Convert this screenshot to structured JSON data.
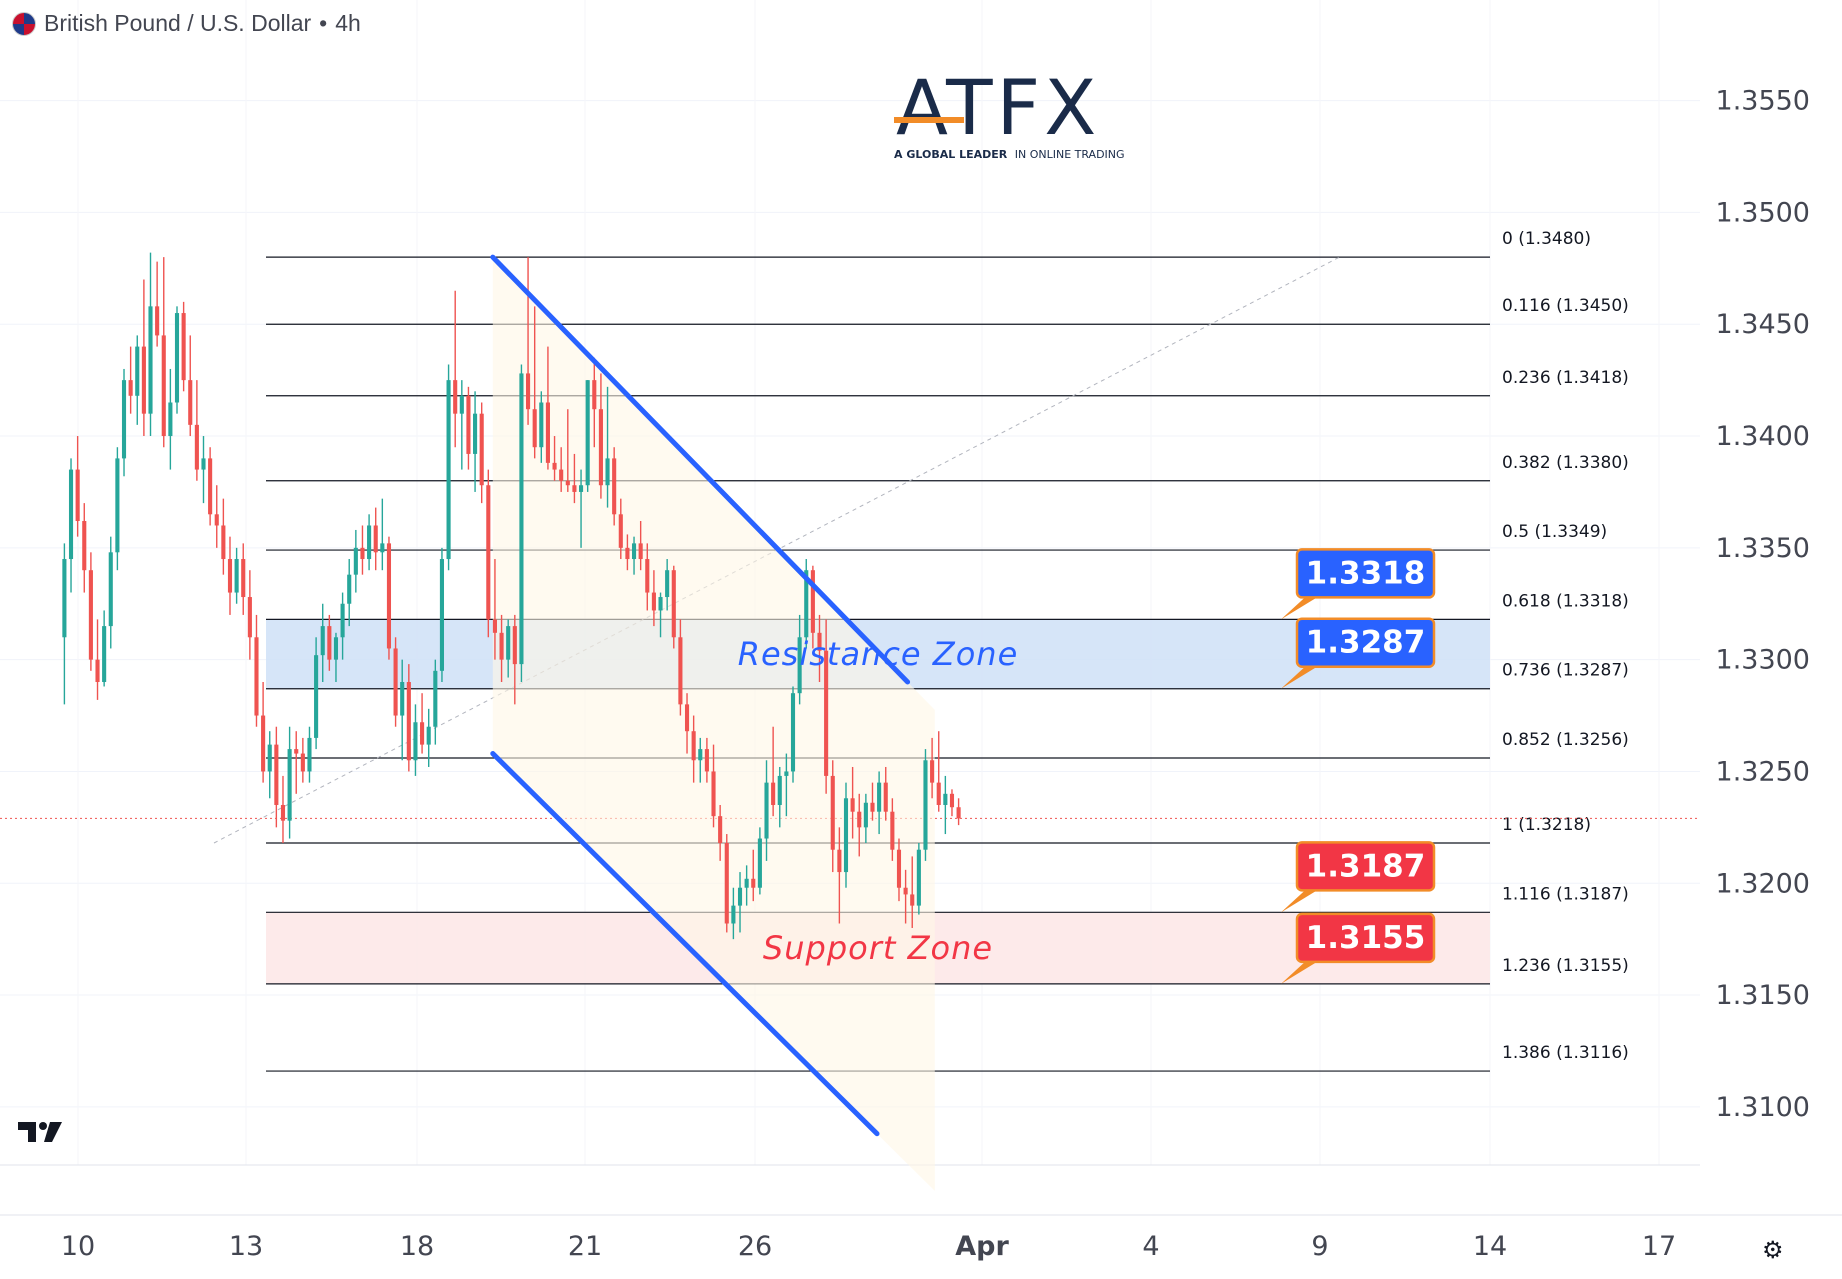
{
  "header": {
    "title": "British Pound / U.S. Dollar",
    "separator": "•",
    "interval": "4h"
  },
  "logo": {
    "name": "ATFX",
    "tagline_bold": "A GLOBAL LEADER",
    "tagline_rest": "IN ONLINE TRADING"
  },
  "colors": {
    "up": "#26a69a",
    "down": "#ef5350",
    "channel": "#2962ff",
    "resistance_fill": "#cfe0f7",
    "support_fill": "#fde6e6",
    "resistance_label": "#2962ff",
    "support_label": "#f23645",
    "fib_line": "#131722",
    "logo_accent": "#f28c28"
  },
  "icons": {
    "tradingview": "tradingview-logo-icon",
    "settings": "settings-icon"
  },
  "chart_data": {
    "type": "candlestick",
    "symbol": "British Pound / U.S. Dollar",
    "interval": "4h",
    "y_axis": {
      "range": [
        1.3074,
        1.3595
      ],
      "ticks": [
        "1.3550",
        "1.3500",
        "1.3450",
        "1.3400",
        "1.3350",
        "1.3300",
        "1.3250",
        "1.3200",
        "1.3150",
        "1.3100"
      ]
    },
    "x_axis": {
      "ticks": [
        "10",
        "13",
        "18",
        "21",
        "26",
        "Apr",
        "4",
        "9",
        "14",
        "17"
      ]
    },
    "grid": true,
    "current_price": 1.3229,
    "fibonacci": [
      {
        "label": "0 (1.3480)",
        "price": 1.348
      },
      {
        "label": "0.116 (1.3450)",
        "price": 1.345
      },
      {
        "label": "0.236 (1.3418)",
        "price": 1.3418
      },
      {
        "label": "0.382 (1.3380)",
        "price": 1.338
      },
      {
        "label": "0.5 (1.3349)",
        "price": 1.3349
      },
      {
        "label": "0.618 (1.3318)",
        "price": 1.3318
      },
      {
        "label": "0.736 (1.3287)",
        "price": 1.3287
      },
      {
        "label": "0.852 (1.3256)",
        "price": 1.3256
      },
      {
        "label": "1 (1.3218)",
        "price": 1.3218
      },
      {
        "label": "1.116 (1.3187)",
        "price": 1.3187
      },
      {
        "label": "1.236 (1.3155)",
        "price": 1.3155
      },
      {
        "label": "1.386 (1.3116)",
        "price": 1.3116
      }
    ],
    "zones": [
      {
        "name": "Resistance Zone",
        "from": 1.3287,
        "to": 1.3318
      },
      {
        "name": "Support Zone",
        "from": 1.3155,
        "to": 1.3187
      }
    ],
    "price_tags": [
      {
        "text": "1.3318",
        "price": 1.3318,
        "kind": "resistance"
      },
      {
        "text": "1.3287",
        "price": 1.3287,
        "kind": "resistance"
      },
      {
        "text": "1.3187",
        "price": 1.3187,
        "kind": "support"
      },
      {
        "text": "1.3155",
        "price": 1.3155,
        "kind": "support"
      }
    ],
    "channel": {
      "upper": [
        [
          22.2,
          1.348
        ],
        [
          34.4,
          1.329
        ]
      ],
      "lower": [
        [
          22.2,
          1.3258
        ],
        [
          33.5,
          1.3088
        ]
      ]
    },
    "candles_ohlc": [
      [
        1.331,
        1.3352,
        1.328,
        1.3345
      ],
      [
        1.3345,
        1.339,
        1.333,
        1.3385
      ],
      [
        1.3385,
        1.34,
        1.3355,
        1.3362
      ],
      [
        1.3362,
        1.337,
        1.333,
        1.334
      ],
      [
        1.334,
        1.3348,
        1.3295,
        1.33
      ],
      [
        1.33,
        1.3318,
        1.3282,
        1.329
      ],
      [
        1.329,
        1.3322,
        1.3288,
        1.3315
      ],
      [
        1.3315,
        1.3355,
        1.3305,
        1.3348
      ],
      [
        1.3348,
        1.3395,
        1.334,
        1.339
      ],
      [
        1.339,
        1.343,
        1.3382,
        1.3425
      ],
      [
        1.3425,
        1.344,
        1.341,
        1.3418
      ],
      [
        1.3418,
        1.3445,
        1.3405,
        1.344
      ],
      [
        1.344,
        1.347,
        1.34,
        1.341
      ],
      [
        1.341,
        1.3482,
        1.34,
        1.3458
      ],
      [
        1.3458,
        1.3478,
        1.344,
        1.3445
      ],
      [
        1.3445,
        1.348,
        1.3395,
        1.34
      ],
      [
        1.34,
        1.343,
        1.3385,
        1.3415
      ],
      [
        1.3415,
        1.3458,
        1.341,
        1.3455
      ],
      [
        1.3455,
        1.346,
        1.342,
        1.3425
      ],
      [
        1.3425,
        1.3445,
        1.34,
        1.3405
      ],
      [
        1.3405,
        1.3425,
        1.338,
        1.3385
      ],
      [
        1.3385,
        1.34,
        1.337,
        1.339
      ],
      [
        1.339,
        1.3395,
        1.336,
        1.3365
      ],
      [
        1.3365,
        1.3378,
        1.335,
        1.336
      ],
      [
        1.336,
        1.3372,
        1.3338,
        1.3345
      ],
      [
        1.3345,
        1.3355,
        1.332,
        1.333
      ],
      [
        1.333,
        1.335,
        1.3325,
        1.3345
      ],
      [
        1.3345,
        1.3352,
        1.332,
        1.3328
      ],
      [
        1.3328,
        1.334,
        1.33,
        1.331
      ],
      [
        1.331,
        1.332,
        1.327,
        1.3275
      ],
      [
        1.3275,
        1.329,
        1.3245,
        1.325
      ],
      [
        1.325,
        1.3268,
        1.3238,
        1.3262
      ],
      [
        1.3262,
        1.327,
        1.3225,
        1.3235
      ],
      [
        1.3235,
        1.3248,
        1.3218,
        1.3228
      ],
      [
        1.3228,
        1.327,
        1.322,
        1.326
      ],
      [
        1.326,
        1.3268,
        1.324,
        1.3258
      ],
      [
        1.3258,
        1.3265,
        1.3245,
        1.325
      ],
      [
        1.325,
        1.327,
        1.3245,
        1.3265
      ],
      [
        1.3265,
        1.331,
        1.326,
        1.3302
      ],
      [
        1.3302,
        1.3325,
        1.329,
        1.3315
      ],
      [
        1.3315,
        1.332,
        1.3295,
        1.33
      ],
      [
        1.33,
        1.3312,
        1.329,
        1.331
      ],
      [
        1.331,
        1.333,
        1.33,
        1.3325
      ],
      [
        1.3325,
        1.3345,
        1.3315,
        1.3338
      ],
      [
        1.3338,
        1.3358,
        1.333,
        1.335
      ],
      [
        1.335,
        1.336,
        1.3338,
        1.3345
      ],
      [
        1.3345,
        1.3365,
        1.334,
        1.336
      ],
      [
        1.336,
        1.3368,
        1.334,
        1.3348
      ],
      [
        1.3348,
        1.3372,
        1.334,
        1.3352
      ],
      [
        1.3352,
        1.3355,
        1.33,
        1.3305
      ],
      [
        1.3305,
        1.331,
        1.327,
        1.3275
      ],
      [
        1.3275,
        1.33,
        1.3255,
        1.329
      ],
      [
        1.329,
        1.3298,
        1.325,
        1.3255
      ],
      [
        1.3255,
        1.328,
        1.3248,
        1.3272
      ],
      [
        1.3272,
        1.3285,
        1.3258,
        1.3262
      ],
      [
        1.3262,
        1.3278,
        1.3252,
        1.327
      ],
      [
        1.327,
        1.33,
        1.3262,
        1.3295
      ],
      [
        1.3295,
        1.335,
        1.329,
        1.3345
      ],
      [
        1.3345,
        1.3432,
        1.334,
        1.3425
      ],
      [
        1.3425,
        1.3465,
        1.3395,
        1.341
      ],
      [
        1.341,
        1.3425,
        1.3385,
        1.3418
      ],
      [
        1.3418,
        1.3422,
        1.3385,
        1.3392
      ],
      [
        1.3392,
        1.342,
        1.3375,
        1.341
      ],
      [
        1.341,
        1.3415,
        1.337,
        1.3378
      ],
      [
        1.3378,
        1.3385,
        1.331,
        1.3318
      ],
      [
        1.3318,
        1.3345,
        1.33,
        1.3312
      ],
      [
        1.3312,
        1.332,
        1.329,
        1.33
      ],
      [
        1.33,
        1.3318,
        1.3292,
        1.3315
      ],
      [
        1.3315,
        1.332,
        1.328,
        1.3298
      ],
      [
        1.3298,
        1.3432,
        1.329,
        1.3428
      ],
      [
        1.3428,
        1.348,
        1.3405,
        1.3412
      ],
      [
        1.3412,
        1.3458,
        1.339,
        1.3395
      ],
      [
        1.3395,
        1.342,
        1.3388,
        1.3415
      ],
      [
        1.3415,
        1.344,
        1.3385,
        1.3388
      ],
      [
        1.3388,
        1.34,
        1.338,
        1.3385
      ],
      [
        1.3385,
        1.3395,
        1.3375,
        1.338
      ],
      [
        1.338,
        1.3412,
        1.3375,
        1.3378
      ],
      [
        1.3378,
        1.3392,
        1.337,
        1.3375
      ],
      [
        1.3375,
        1.3385,
        1.335,
        1.3378
      ],
      [
        1.3378,
        1.3425,
        1.3375,
        1.3425
      ],
      [
        1.3425,
        1.3435,
        1.3395,
        1.3412
      ],
      [
        1.3412,
        1.3428,
        1.3372,
        1.3378
      ],
      [
        1.3378,
        1.3422,
        1.3368,
        1.339
      ],
      [
        1.339,
        1.3395,
        1.336,
        1.3365
      ],
      [
        1.3365,
        1.3372,
        1.3345,
        1.335
      ],
      [
        1.335,
        1.3356,
        1.334,
        1.3345
      ],
      [
        1.3345,
        1.3355,
        1.3338,
        1.3352
      ],
      [
        1.3352,
        1.3362,
        1.334,
        1.3345
      ],
      [
        1.3345,
        1.3352,
        1.3322,
        1.333
      ],
      [
        1.333,
        1.334,
        1.3315,
        1.3322
      ],
      [
        1.3322,
        1.333,
        1.331,
        1.3328
      ],
      [
        1.3328,
        1.3345,
        1.3322,
        1.334
      ],
      [
        1.334,
        1.3342,
        1.3305,
        1.331
      ],
      [
        1.331,
        1.3318,
        1.3275,
        1.328
      ],
      [
        1.328,
        1.3285,
        1.3258,
        1.3268
      ],
      [
        1.3268,
        1.3275,
        1.3245,
        1.3255
      ],
      [
        1.3255,
        1.3265,
        1.3245,
        1.326
      ],
      [
        1.326,
        1.3265,
        1.3245,
        1.325
      ],
      [
        1.325,
        1.3262,
        1.3225,
        1.323
      ],
      [
        1.323,
        1.3235,
        1.321,
        1.3218
      ],
      [
        1.3218,
        1.3222,
        1.3178,
        1.3182
      ],
      [
        1.3182,
        1.3198,
        1.3175,
        1.319
      ],
      [
        1.319,
        1.3205,
        1.3178,
        1.3198
      ],
      [
        1.3198,
        1.3208,
        1.319,
        1.3202
      ],
      [
        1.3202,
        1.3215,
        1.3192,
        1.3198
      ],
      [
        1.3198,
        1.3225,
        1.3195,
        1.322
      ],
      [
        1.322,
        1.3255,
        1.321,
        1.3245
      ],
      [
        1.3245,
        1.327,
        1.323,
        1.3235
      ],
      [
        1.3235,
        1.3252,
        1.3225,
        1.3248
      ],
      [
        1.3248,
        1.3258,
        1.323,
        1.325
      ],
      [
        1.325,
        1.3288,
        1.3245,
        1.3285
      ],
      [
        1.3285,
        1.332,
        1.328,
        1.331
      ],
      [
        1.331,
        1.3345,
        1.3305,
        1.334
      ],
      [
        1.334,
        1.3342,
        1.3305,
        1.3312
      ],
      [
        1.3312,
        1.332,
        1.329,
        1.3304
      ],
      [
        1.3304,
        1.3318,
        1.324,
        1.3248
      ],
      [
        1.3248,
        1.3255,
        1.3205,
        1.3215
      ],
      [
        1.3215,
        1.3225,
        1.3182,
        1.3205
      ],
      [
        1.3205,
        1.3245,
        1.3198,
        1.3238
      ],
      [
        1.3238,
        1.3252,
        1.322,
        1.3232
      ],
      [
        1.3232,
        1.324,
        1.3212,
        1.3225
      ],
      [
        1.3225,
        1.324,
        1.3218,
        1.3236
      ],
      [
        1.3236,
        1.3245,
        1.3228,
        1.3232
      ],
      [
        1.3232,
        1.325,
        1.3222,
        1.3245
      ],
      [
        1.3245,
        1.3252,
        1.3228,
        1.3232
      ],
      [
        1.3232,
        1.3238,
        1.321,
        1.3215
      ],
      [
        1.3215,
        1.322,
        1.3192,
        1.3198
      ],
      [
        1.3198,
        1.3206,
        1.3182,
        1.3195
      ],
      [
        1.3195,
        1.3212,
        1.318,
        1.319
      ],
      [
        1.319,
        1.3218,
        1.3186,
        1.3215
      ],
      [
        1.3215,
        1.326,
        1.321,
        1.3255
      ],
      [
        1.3255,
        1.3265,
        1.3238,
        1.3245
      ],
      [
        1.3245,
        1.3268,
        1.3232,
        1.3235
      ],
      [
        1.3235,
        1.3248,
        1.3222,
        1.324
      ],
      [
        1.324,
        1.3242,
        1.323,
        1.3234
      ],
      [
        1.3234,
        1.3238,
        1.3226,
        1.3229
      ]
    ]
  }
}
